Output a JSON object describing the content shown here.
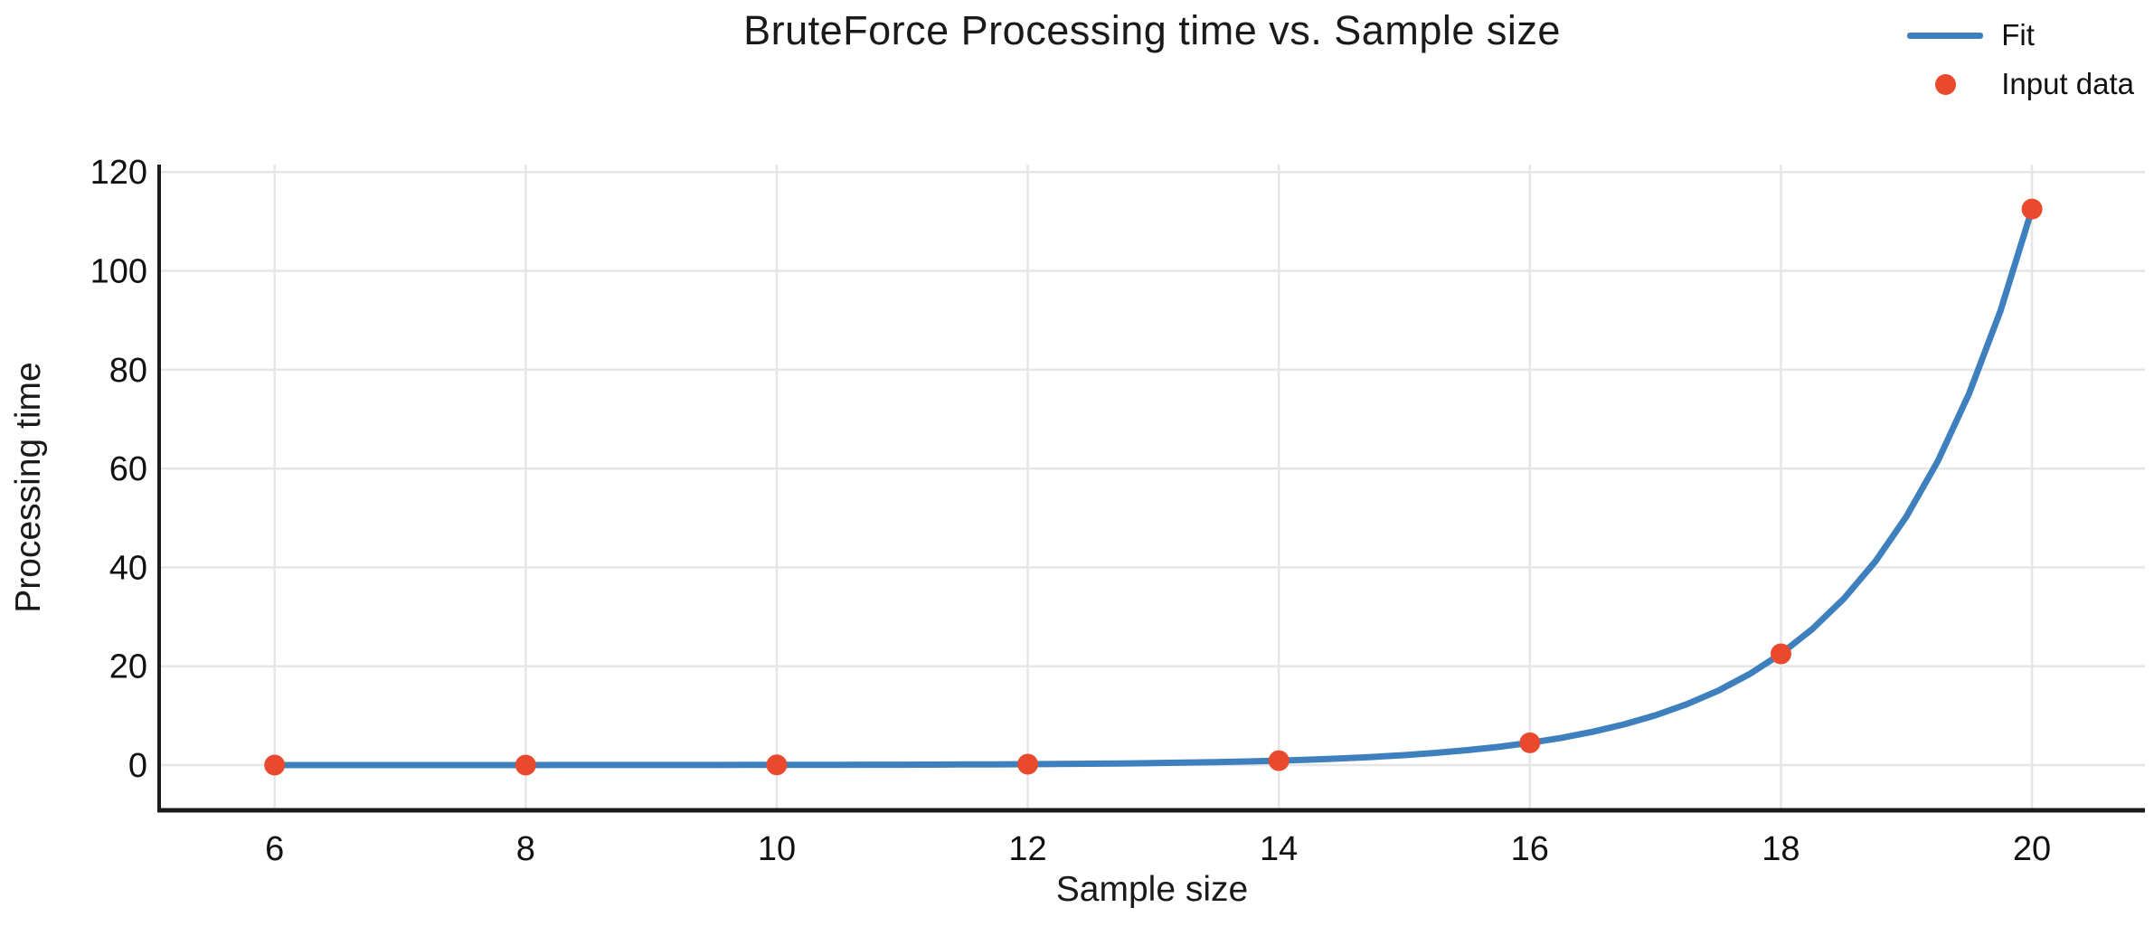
{
  "chart_data": {
    "type": "line",
    "title": "BruteForce Processing time vs. Sample size",
    "xlabel": "Sample size",
    "ylabel": "Processing time",
    "x_ticks": [
      6,
      8,
      10,
      12,
      14,
      16,
      18,
      20
    ],
    "y_ticks": [
      0,
      20,
      40,
      60,
      80,
      100,
      120
    ],
    "xlim": [
      5.08,
      20.9
    ],
    "ylim": [
      -9.15,
      121.5
    ],
    "grid": true,
    "legend_position": "top-right",
    "series": [
      {
        "name": "Fit",
        "kind": "line",
        "color": "#3E80BE",
        "x": [
          6,
          6.25,
          6.5,
          6.75,
          7,
          7.25,
          7.5,
          7.75,
          8,
          8.25,
          8.5,
          8.75,
          9,
          9.25,
          9.5,
          9.75,
          10,
          10.25,
          10.5,
          10.75,
          11,
          11.25,
          11.5,
          11.75,
          12,
          12.25,
          12.5,
          12.75,
          13,
          13.25,
          13.5,
          13.75,
          14,
          14.25,
          14.5,
          14.75,
          15,
          15.25,
          15.5,
          15.75,
          16,
          16.25,
          16.5,
          16.75,
          17,
          17.25,
          17.5,
          17.75,
          18,
          18.25,
          18.5,
          18.75,
          19,
          19.25,
          19.5,
          19.75,
          20
        ],
        "y": [
          0.0014,
          0.0018,
          0.0022,
          0.0026,
          0.0032,
          0.0039,
          0.0048,
          0.0059,
          0.0072,
          0.0088,
          0.0108,
          0.0132,
          0.0161,
          0.0197,
          0.0241,
          0.0294,
          0.036,
          0.044,
          0.0538,
          0.0658,
          0.0805,
          0.0984,
          0.1204,
          0.1472,
          0.18,
          0.2201,
          0.2692,
          0.3291,
          0.4025,
          0.4922,
          0.6019,
          0.736,
          0.9,
          1.1006,
          1.3458,
          1.6457,
          2.0125,
          2.461,
          3.0093,
          3.6798,
          4.5,
          5.5028,
          6.7291,
          8.2283,
          10.0623,
          12.3048,
          15.0466,
          18.399,
          22.5,
          27.514,
          33.6453,
          41.1415,
          50.3115,
          61.5238,
          75.2328,
          91.995,
          112.5
        ]
      },
      {
        "name": "Input data",
        "kind": "scatter",
        "color": "#E94A2E",
        "x": [
          6,
          8,
          10,
          12,
          14,
          16,
          18,
          20
        ],
        "y": [
          0.0014,
          0.0072,
          0.036,
          0.18,
          0.9,
          4.5,
          22.5,
          112.5
        ]
      }
    ]
  },
  "colors": {
    "grid": "#E6E6E6",
    "spine": "#1C1C1C",
    "text": "#111111",
    "background": "#FFFFFF",
    "fit_line": "#3E80BE",
    "marker": "#E94A2E"
  }
}
